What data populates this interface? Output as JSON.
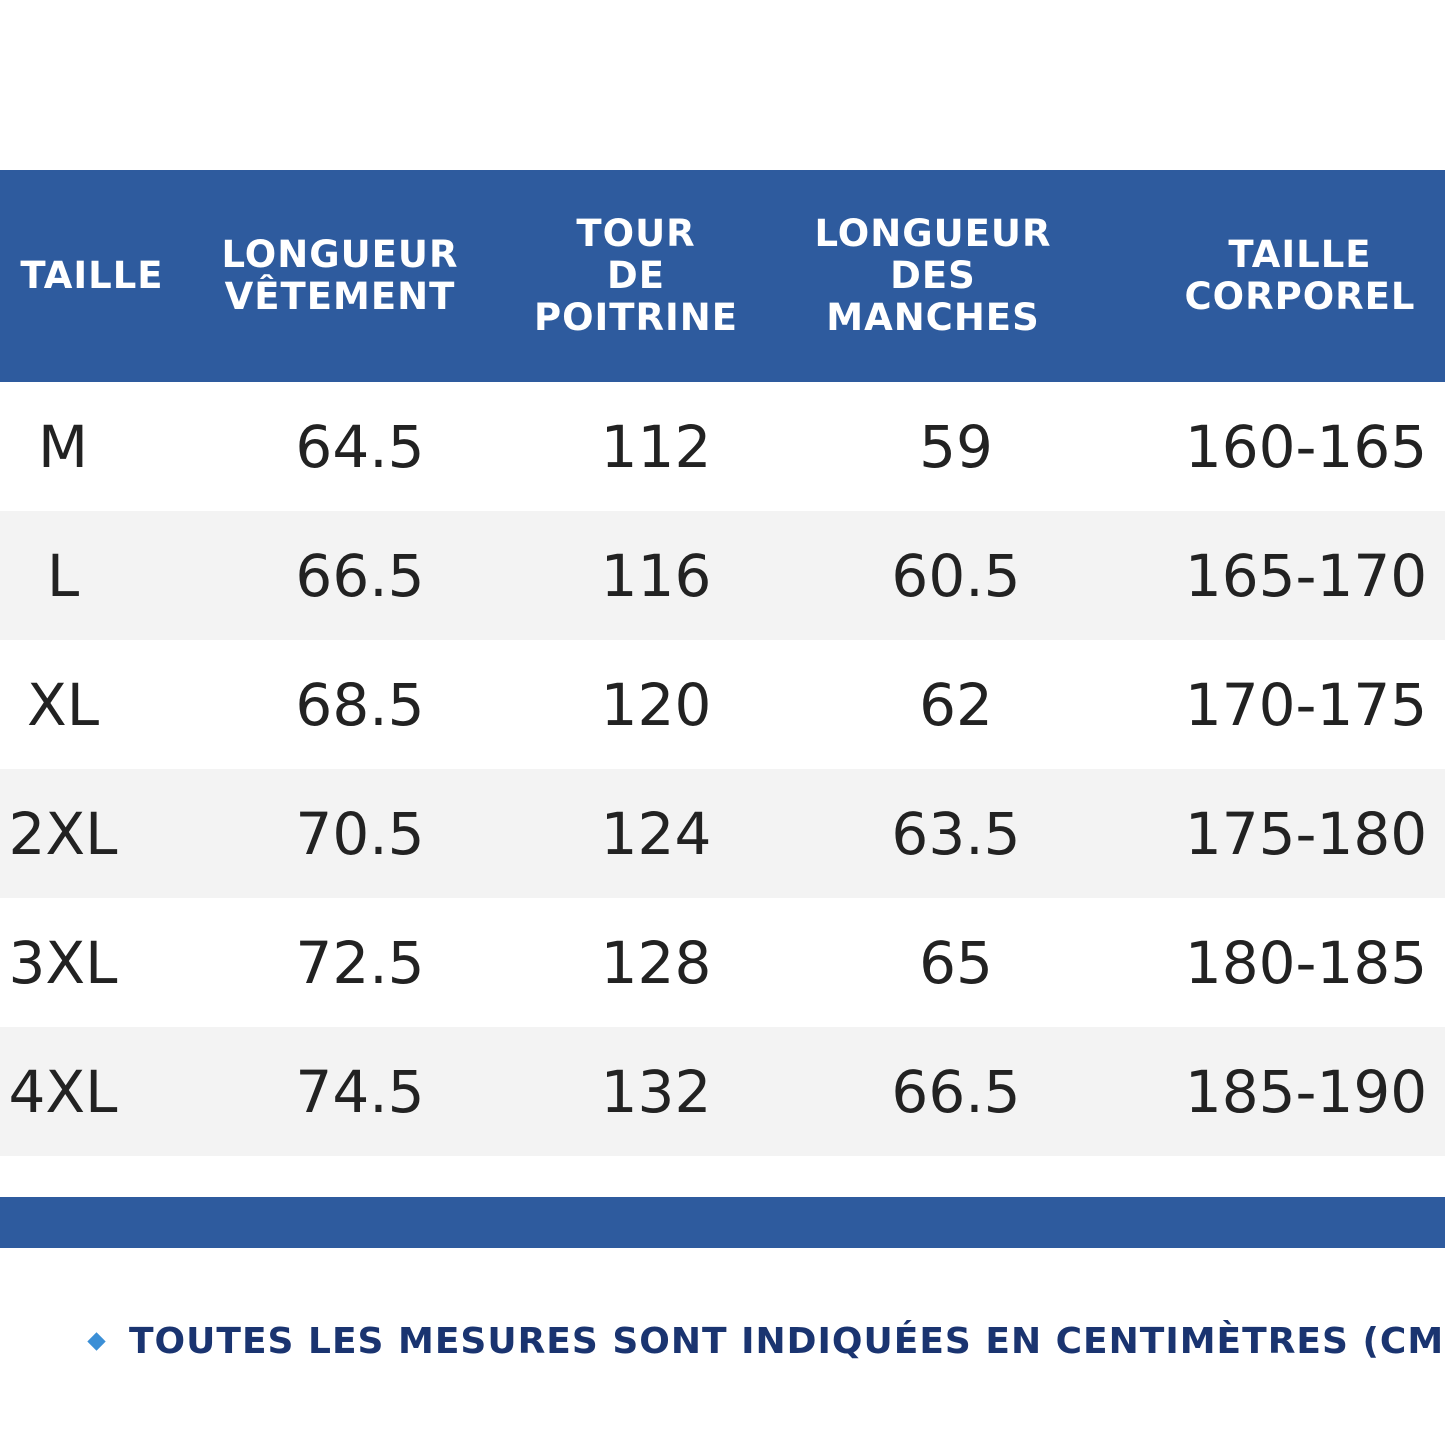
{
  "table": {
    "headers": [
      [
        "TAILLE"
      ],
      [
        "LONGUEUR",
        "VÊTEMENT"
      ],
      [
        "TOUR",
        "DE",
        "POITRINE"
      ],
      [
        "LONGUEUR",
        "DES",
        "MANCHES"
      ],
      [
        "TAILLE",
        "CORPOREL"
      ]
    ],
    "rows": [
      [
        "M",
        "64.5",
        "112",
        "59",
        "160-165"
      ],
      [
        "L",
        "66.5",
        "116",
        "60.5",
        "165-170"
      ],
      [
        "XL",
        "68.5",
        "120",
        "62",
        "170-175"
      ],
      [
        "2XL",
        "70.5",
        "124",
        "63.5",
        "175-180"
      ],
      [
        "3XL",
        "72.5",
        "128",
        "65",
        "180-185"
      ],
      [
        "4XL",
        "74.5",
        "132",
        "66.5",
        "185-190"
      ]
    ]
  },
  "footnote": "TOUTES LES MESURES SONT INDIQUÉES EN CENTIMÈTRES (CM)."
}
